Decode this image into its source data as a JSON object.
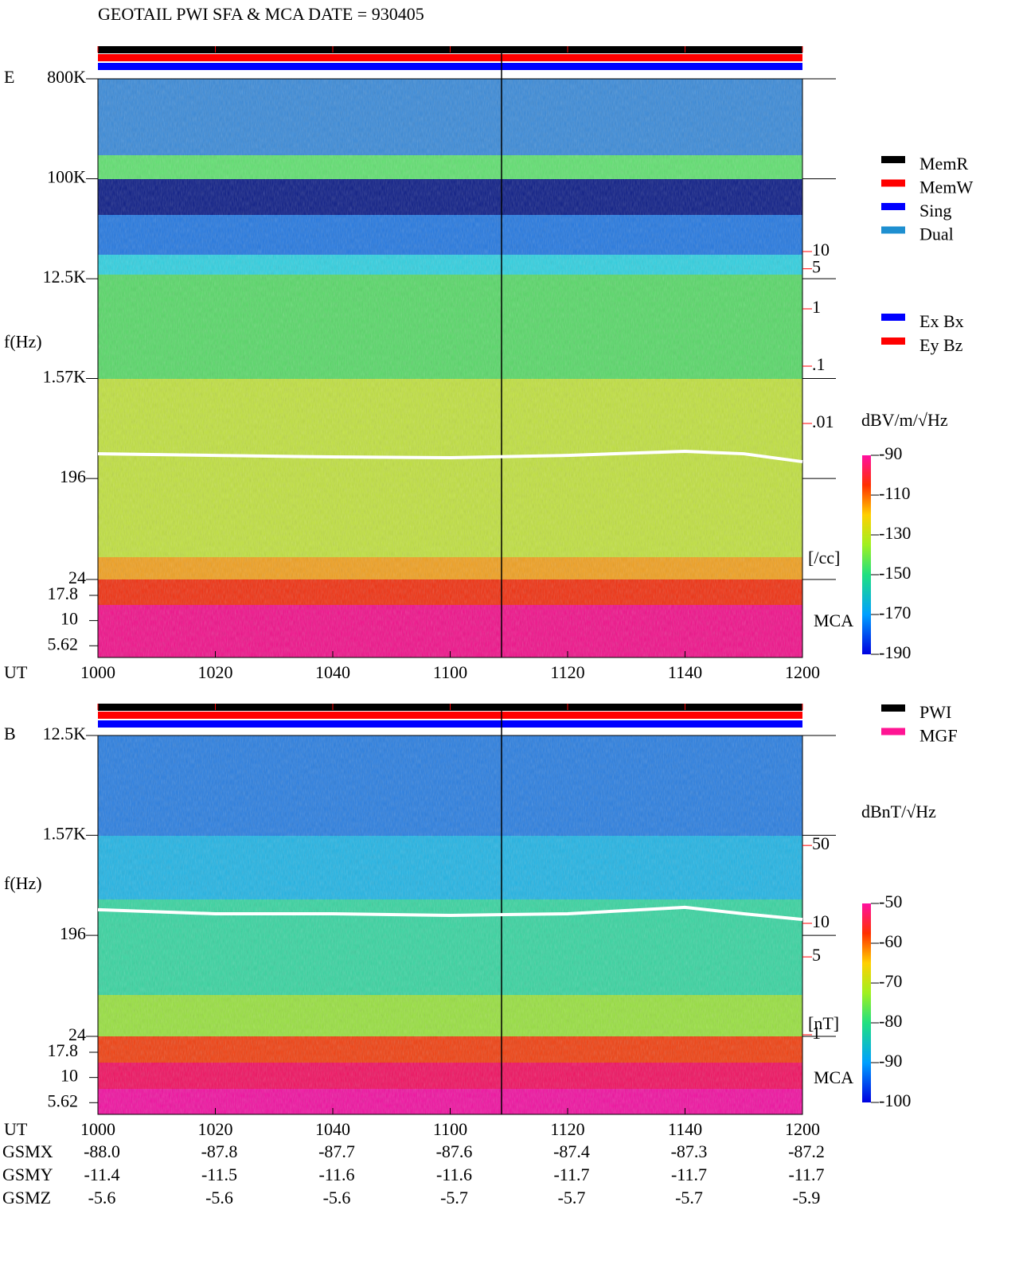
{
  "title": "GEOTAIL  PWI SFA & MCA   DATE = 930405",
  "chart_data": [
    {
      "type": "spectrogram",
      "panel_label": "E",
      "ylabel": "f(Hz)",
      "xlabel": "UT",
      "mca_label": "MCA",
      "xlim": [
        600,
        720
      ],
      "xticks": [
        {
          "value": 600,
          "label": "1000"
        },
        {
          "value": 620,
          "label": "1020"
        },
        {
          "value": 640,
          "label": "1040"
        },
        {
          "value": 660,
          "label": "1100"
        },
        {
          "value": 680,
          "label": "1120"
        },
        {
          "value": 700,
          "label": "1140"
        },
        {
          "value": 720,
          "label": "1200"
        }
      ],
      "log_y": true,
      "ylim": [
        24,
        800000
      ],
      "yticks": [
        {
          "value": 800000,
          "label": "800K"
        },
        {
          "value": 100000,
          "label": "100K"
        },
        {
          "value": 12500,
          "label": "12.5K"
        },
        {
          "value": 1570,
          "label": "1.57K"
        },
        196,
        24
      ],
      "mca_ylim": [
        4.3,
        25.6
      ],
      "mca_yticks": [
        17.8,
        10,
        5.62
      ],
      "colorbar": {
        "label": "dBV/m/√Hz",
        "lim": [
          -190,
          -90
        ],
        "ticks": [
          -90,
          -110,
          -130,
          -150,
          -170,
          -190
        ]
      },
      "density_scale": {
        "lim": [
          0.001,
          100
        ],
        "color": "#ff0000",
        "unit": "[/cc]",
        "ticks": [
          10,
          5,
          1,
          {
            "value": 0.1,
            "label": ".1"
          },
          {
            "value": 0.01,
            "label": ".01"
          }
        ]
      },
      "trace": {
        "color": "#ffffff",
        "x": [
          600,
          620,
          640,
          660,
          680,
          700,
          710,
          720
        ],
        "values": [
          328,
          317,
          307,
          302,
          317,
          345,
          328,
          278
        ]
      },
      "legend": [
        {
          "name": "MemR",
          "color": "#000000"
        },
        {
          "name": "MemW",
          "color": "#ff0000"
        },
        {
          "name": "Sing",
          "color": "#0000ff"
        },
        {
          "name": "Dual",
          "color": "#1e8fd0"
        }
      ],
      "legend2": [
        {
          "name": "Ex Bx",
          "color": "#0000ff"
        },
        {
          "name": "Ey Bz",
          "color": "#ff0000"
        }
      ]
    },
    {
      "type": "spectrogram",
      "panel_label": "B",
      "ylabel": "f(Hz)",
      "xlabel": "UT",
      "mca_label": "MCA",
      "xlim": [
        600,
        720
      ],
      "xticks": [
        {
          "value": 600,
          "label": "1000"
        },
        {
          "value": 620,
          "label": "1020"
        },
        {
          "value": 640,
          "label": "1040"
        },
        {
          "value": 660,
          "label": "1100"
        },
        {
          "value": 680,
          "label": "1120"
        },
        {
          "value": 700,
          "label": "1140"
        },
        {
          "value": 720,
          "label": "1200"
        }
      ],
      "log_y": true,
      "ylim": [
        24,
        12500
      ],
      "yticks": [
        {
          "value": 12500,
          "label": "12.5K"
        },
        {
          "value": 1570,
          "label": "1.57K"
        },
        196,
        24
      ],
      "mca_ylim": [
        4.3,
        25.6
      ],
      "mca_yticks": [
        17.8,
        10,
        5.62
      ],
      "colorbar": {
        "label": "dBnT/√Hz",
        "lim": [
          -100,
          -50
        ],
        "ticks": [
          -50,
          -60,
          -70,
          -80,
          -90,
          -100
        ]
      },
      "density_scale": {
        "lim": [
          1,
          100
        ],
        "color": "#ff0000",
        "unit": "[nT]",
        "ticks": [
          50,
          10,
          5,
          1
        ]
      },
      "trace": {
        "color": "#ffffff",
        "x": [
          600,
          620,
          640,
          660,
          680,
          700,
          710,
          720
        ],
        "values": [
          334,
          307,
          307,
          297,
          307,
          351,
          307,
          273
        ]
      },
      "legend": [
        {
          "name": "PWI",
          "color": "#000000"
        },
        {
          "name": "MGF",
          "color": "#ff1493"
        }
      ]
    }
  ],
  "orbit": {
    "rows": [
      {
        "name": "GSMX",
        "values": [
          "-88.0",
          "-87.8",
          "-87.7",
          "-87.6",
          "-87.4",
          "-87.3",
          "-87.2"
        ]
      },
      {
        "name": "GSMY",
        "values": [
          "-11.4",
          "-11.5",
          "-11.6",
          "-11.6",
          "-11.7",
          "-11.7",
          "-11.7"
        ]
      },
      {
        "name": "GSMZ",
        "values": [
          "-5.6",
          "-5.6",
          "-5.6",
          "-5.7",
          "-5.7",
          "-5.7",
          "-5.9"
        ]
      }
    ]
  }
}
